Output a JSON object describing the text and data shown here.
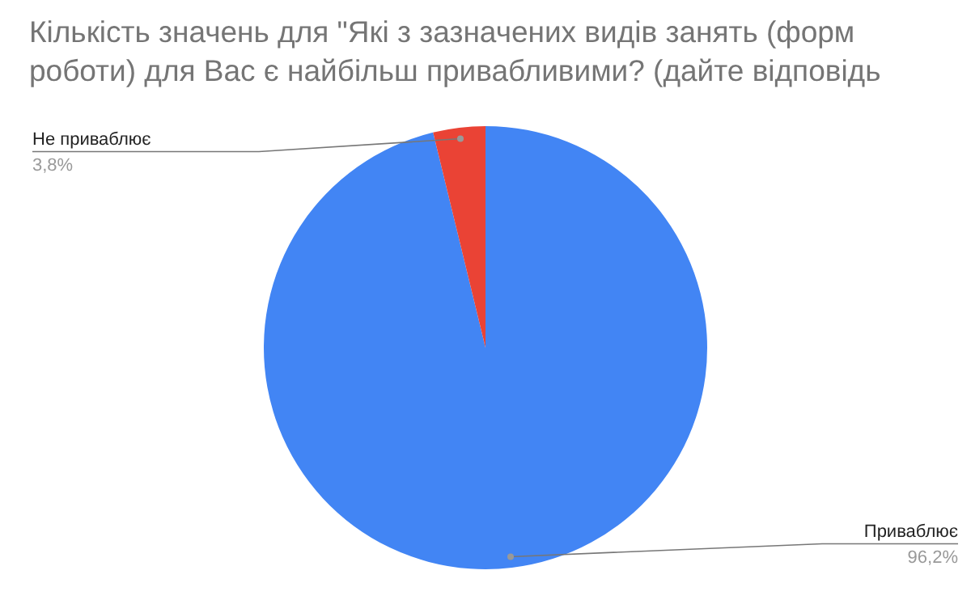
{
  "chart_data": {
    "type": "pie",
    "title": "Кількість значень для \"Які з зазначених видів занять (форм роботи) для Вас є найбільш привабливими? (дайте відповідь",
    "categories": [
      "Приваблює",
      "Не приваблює"
    ],
    "values": [
      96.2,
      3.8
    ],
    "colors": [
      "#4285f4",
      "#ea4335"
    ],
    "value_labels": [
      "96,2%",
      "3,8%"
    ],
    "legend": false
  }
}
